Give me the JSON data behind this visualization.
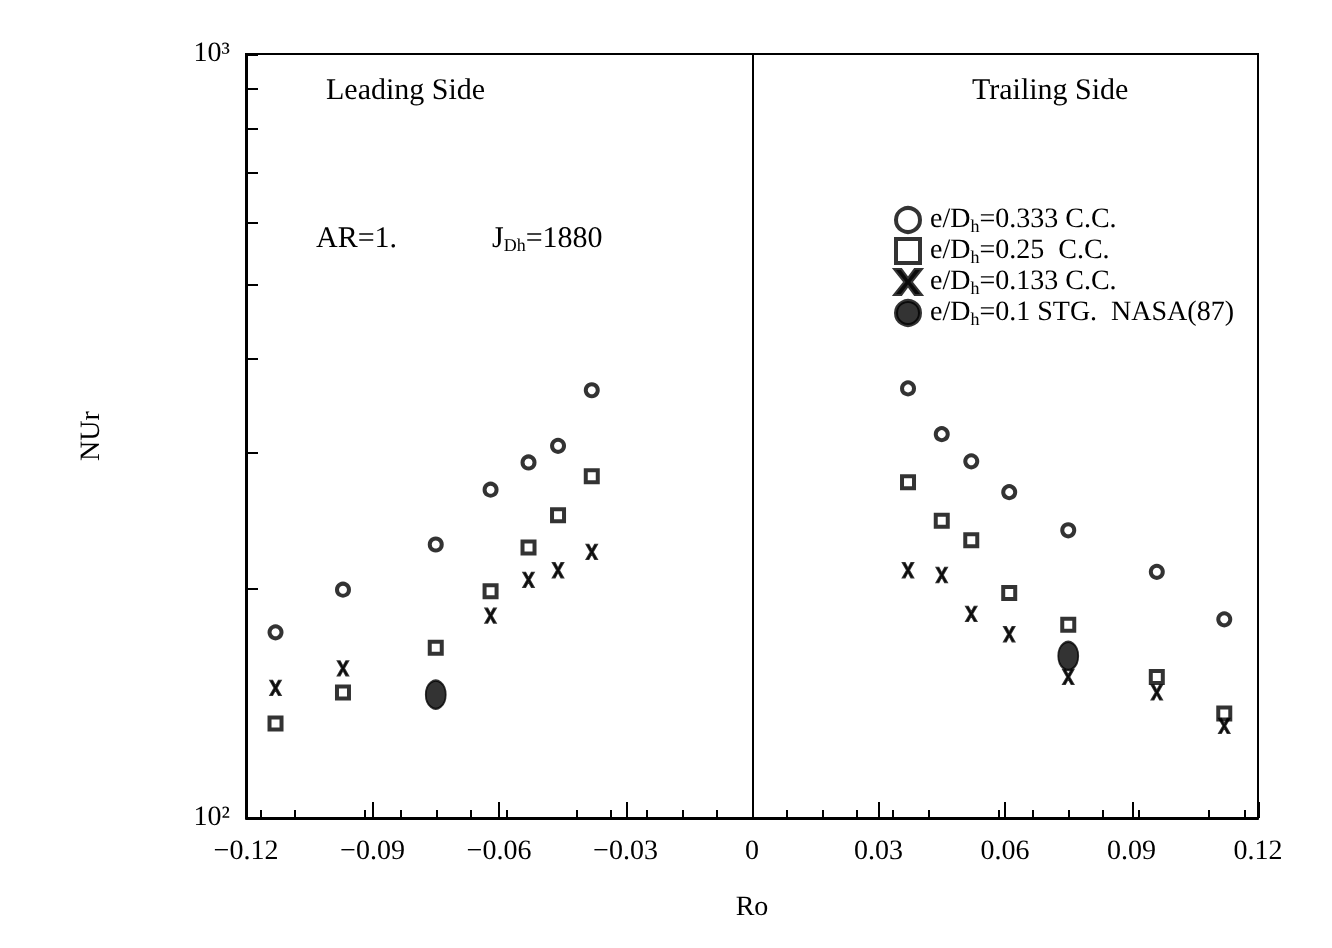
{
  "chart_data": {
    "type": "scatter",
    "xlabel": "Ro",
    "ylabel": "NUr",
    "xlim": [
      -0.12,
      0.12
    ],
    "xticks": [
      -0.12,
      -0.09,
      -0.06,
      -0.03,
      0,
      0.03,
      0.06,
      0.09,
      0.12
    ],
    "ylim": [
      100,
      1000
    ],
    "log": "y",
    "yticks": [
      {
        "value": 100,
        "label": "10²"
      },
      {
        "value": 200,
        "label": null
      },
      {
        "value": 300,
        "label": null
      },
      {
        "value": 400,
        "label": null
      },
      {
        "value": 500,
        "label": null
      },
      {
        "value": 600,
        "label": null
      },
      {
        "value": 700,
        "label": null
      },
      {
        "value": 800,
        "label": null
      },
      {
        "value": 900,
        "label": null
      },
      {
        "value": 1000,
        "label": "10³"
      }
    ],
    "grid": false,
    "legend": "top right",
    "annotations": [
      "Leading Side",
      "Trailing Side",
      "AR=1.",
      "J$_{Dh}$=1880"
    ],
    "ref_lines": [
      {
        "axis": "x",
        "value": 0,
        "color": "#000000",
        "line_style": "solid"
      }
    ],
    "series": [
      {
        "name": "e/D$_{h}$=0.333 C.C.",
        "color": "#000000",
        "marker": "circle",
        "x": [
          -0.113,
          -0.097,
          -0.075,
          -0.062,
          -0.053,
          -0.046,
          -0.038,
          0.037,
          0.045,
          0.052,
          0.061,
          0.075,
          0.096,
          0.112
        ],
        "values": [
          175,
          199,
          228,
          269,
          292,
          307,
          363,
          365,
          318,
          293,
          267,
          238,
          210,
          182
        ]
      },
      {
        "name": "e/D$_{h}$=0.25  C.C.",
        "color": "#000000",
        "marker": "square",
        "x": [
          -0.113,
          -0.097,
          -0.075,
          -0.062,
          -0.053,
          -0.046,
          -0.038,
          0.037,
          0.045,
          0.052,
          0.061,
          0.075,
          0.096,
          0.112
        ],
        "values": [
          133,
          146,
          167,
          198,
          226,
          249,
          280,
          275,
          245,
          231,
          197,
          179,
          153,
          137
        ]
      },
      {
        "name": "e/D$_{h}$=0.133 C.C.",
        "color": "#000000",
        "marker": "cross",
        "x": [
          -0.113,
          -0.097,
          -0.062,
          -0.053,
          -0.046,
          -0.038,
          0.037,
          0.045,
          0.052,
          0.061,
          0.075,
          0.096,
          0.112
        ],
        "values": [
          148,
          157,
          184,
          205,
          211,
          223,
          211,
          208,
          185,
          174,
          153,
          146,
          132
        ]
      },
      {
        "name": "e/D$_{h}$=0.1 STG.  NASA(87)",
        "color": "#000000",
        "marker": "circle",
        "x": [
          -0.075,
          0.075
        ],
        "values": [
          145,
          163
        ]
      }
    ]
  }
}
